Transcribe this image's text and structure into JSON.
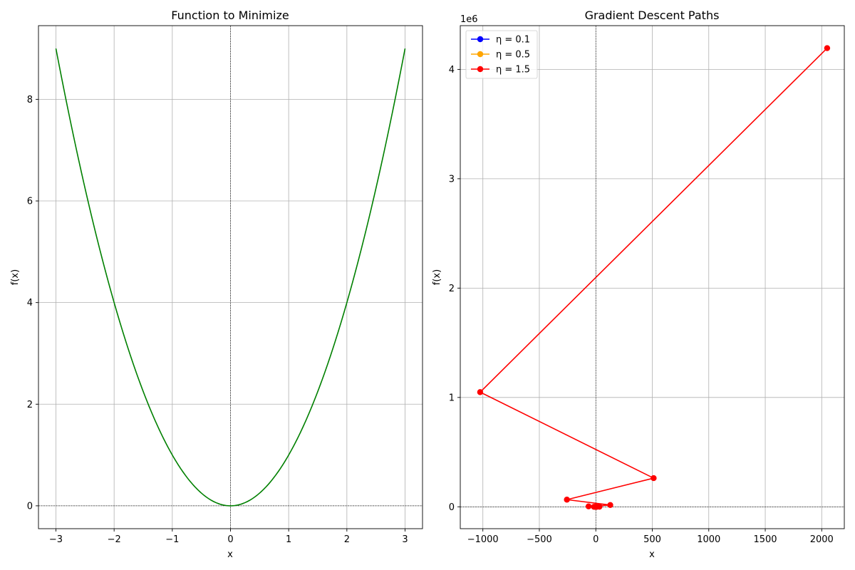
{
  "figure": {
    "background": "#ffffff"
  },
  "chart_data": [
    {
      "type": "line",
      "title": "Function to Minimize",
      "xlabel": "x",
      "ylabel": "f(x)",
      "xlim": [
        -3.3,
        3.3
      ],
      "ylim": [
        -0.45,
        9.45
      ],
      "xticks": [
        -3,
        -2,
        -1,
        0,
        1,
        2,
        3
      ],
      "yticks": [
        0,
        2,
        4,
        6,
        8
      ],
      "grid": true,
      "reference_lines": {
        "x": 0,
        "y": 0
      },
      "series": [
        {
          "color": "#008000",
          "function": "x^2",
          "x_range": [
            -3,
            3
          ],
          "points": [
            [
              -3,
              9
            ],
            [
              -2.5,
              6.25
            ],
            [
              -2,
              4
            ],
            [
              -1.5,
              2.25
            ],
            [
              -1,
              1
            ],
            [
              -0.5,
              0.25
            ],
            [
              0,
              0
            ],
            [
              0.5,
              0.25
            ],
            [
              1,
              1
            ],
            [
              1.5,
              2.25
            ],
            [
              2,
              4
            ],
            [
              2.5,
              6.25
            ],
            [
              3,
              9
            ]
          ]
        }
      ]
    },
    {
      "type": "line",
      "title": "Gradient Descent Paths",
      "xlabel": "x",
      "ylabel": "f(x)",
      "xlim": [
        -1200,
        2200
      ],
      "ylim": [
        -200000,
        4400000
      ],
      "xticks": [
        -1000,
        -500,
        0,
        500,
        1000,
        1500,
        2000
      ],
      "yticks": [
        0,
        1000000,
        2000000,
        3000000,
        4000000
      ],
      "ytick_labels": [
        "0",
        "1",
        "2",
        "3",
        "4"
      ],
      "y_offset_text": "1e6",
      "grid": true,
      "legend_position": "top-left",
      "reference_lines": {
        "x": 0,
        "y": 0
      },
      "series": [
        {
          "name": "η = 0.1",
          "color": "#0000ff",
          "marker": "o",
          "x": [
            2,
            1.6,
            1.28,
            1.024,
            0.8192,
            0.65536,
            0.524288,
            0.4194304,
            0.33554432,
            0.268435456,
            0.2147483648
          ],
          "y": [
            4,
            2.56,
            1.6384,
            1.048576,
            0.67108864,
            0.4294967296,
            0.274877906944,
            0.17592186044416,
            0.1125899906842624,
            0.07205759403792794,
            0.04611686018427388
          ]
        },
        {
          "name": "η = 0.5",
          "color": "#ffa500",
          "marker": "o",
          "x": [
            2,
            0,
            0,
            0,
            0,
            0,
            0,
            0,
            0,
            0,
            0
          ],
          "y": [
            4,
            0,
            0,
            0,
            0,
            0,
            0,
            0,
            0,
            0,
            0
          ]
        },
        {
          "name": "η = 1.5",
          "color": "#ff0000",
          "marker": "o",
          "x": [
            2,
            -4,
            8,
            -16,
            32,
            -64,
            128,
            -256,
            512,
            -1024,
            2048
          ],
          "y": [
            4,
            16,
            64,
            256,
            1024,
            4096,
            16384,
            65536,
            262144,
            1048576,
            4194304
          ]
        }
      ]
    }
  ]
}
